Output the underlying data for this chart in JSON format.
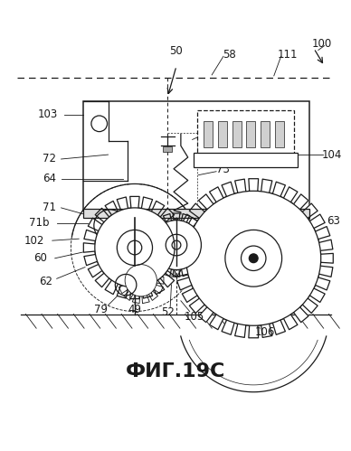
{
  "title": "ФИГ.19С",
  "title_fontsize": 16,
  "background_color": "#ffffff",
  "line_color": "#1a1a1a",
  "fig_width": 3.88,
  "fig_height": 4.99,
  "dpi": 100
}
